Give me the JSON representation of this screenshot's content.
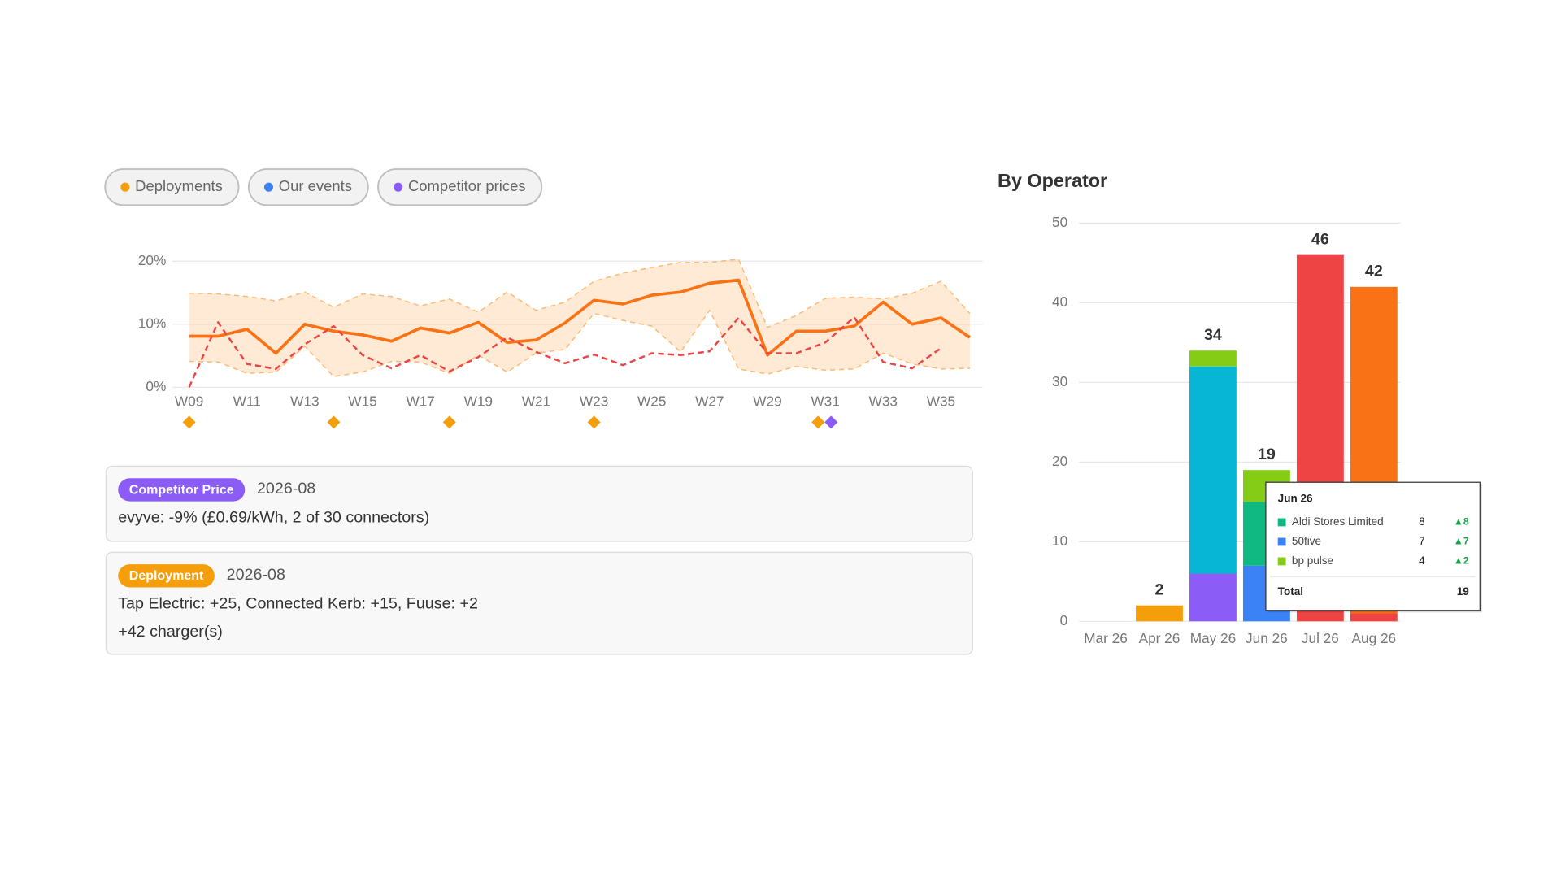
{
  "filters": [
    {
      "label": "Deployments",
      "color": "#f59e0b"
    },
    {
      "label": "Our events",
      "color": "#3b82f6"
    },
    {
      "label": "Competitor prices",
      "color": "#8b5cf6"
    }
  ],
  "chart_data": [
    {
      "type": "line",
      "categories": [
        "W09",
        null,
        "W11",
        null,
        "W13",
        null,
        "W15",
        null,
        "W17",
        null,
        "W19",
        null,
        "W21",
        null,
        "W23",
        null,
        "W25",
        null,
        "W27",
        null,
        "W29",
        null,
        "W31",
        null,
        "W33",
        null,
        "W35",
        null
      ],
      "ylim": [
        0,
        22
      ],
      "yticks": [
        {
          "value": 0,
          "label": "0%"
        },
        {
          "value": 10,
          "label": "10%"
        },
        {
          "value": 20,
          "label": "20%"
        }
      ],
      "grid": true,
      "band": {
        "color": "#fdba74",
        "upper": [
          14.9,
          14.8,
          14.4,
          13.7,
          15.1,
          12.7,
          14.8,
          14.4,
          12.9,
          14,
          11.9,
          15.1,
          12.2,
          13.5,
          16.8,
          18.1,
          19,
          19.8,
          19.8,
          20.3,
          9.5,
          11.4,
          14.1,
          14.3,
          14,
          14.9,
          16.8,
          11.7
        ],
        "lower": [
          4.1,
          4,
          2.2,
          2.4,
          6.5,
          1.7,
          2.4,
          4.1,
          4,
          2.2,
          5.1,
          2.4,
          5.4,
          6,
          11.7,
          10.6,
          9.7,
          5.6,
          12.2,
          2.9,
          2.1,
          3.3,
          2.7,
          2.9,
          5.4,
          3.7,
          2.9,
          3
        ]
      },
      "series": [
        {
          "color": "#f97316",
          "dashed": false,
          "values": [
            8.1,
            8.1,
            9.2,
            5.4,
            10,
            8.9,
            8.3,
            7.3,
            9.4,
            8.6,
            10.3,
            7.1,
            7.5,
            10.2,
            13.8,
            13.2,
            14.6,
            15.1,
            16.5,
            17,
            5.1,
            8.9,
            8.9,
            9.7,
            13.5,
            10,
            11,
            7.9
          ]
        },
        {
          "color": "#ef4444",
          "dashed": true,
          "values": [
            0,
            10.3,
            3.7,
            2.9,
            6.8,
            9.7,
            5.1,
            3,
            5.1,
            2.5,
            4.8,
            7.9,
            5.6,
            3.8,
            5.2,
            3.5,
            5.4,
            5.1,
            5.7,
            11,
            5.4,
            5.4,
            7.1,
            11.1,
            4,
            3,
            6.2,
            null
          ]
        }
      ],
      "markers": {
        "x": [
          0,
          5,
          9,
          14,
          21.75,
          22.2
        ],
        "colors": [
          "#f59e0b",
          "#f59e0b",
          "#f59e0b",
          "#f59e0b",
          "#f59e0b",
          "#8b5cf6"
        ]
      }
    },
    {
      "type": "bar",
      "stacked": true,
      "title": "By Operator",
      "categories": [
        "Mar 26",
        "Apr 26",
        "May 26",
        "Jun 26",
        "Jul 26",
        "Aug 26"
      ],
      "ylim": [
        0,
        50
      ],
      "yticks": [
        0,
        10,
        20,
        30,
        40,
        50
      ],
      "grid": true,
      "series": [
        {
          "color": "#f59e0b",
          "values": [
            null,
            2,
            null,
            null,
            null,
            null
          ]
        },
        {
          "color": "#8b5cf6",
          "values": [
            null,
            null,
            6,
            null,
            null,
            null
          ]
        },
        {
          "color": "#3b82f6",
          "values": [
            null,
            null,
            null,
            7,
            null,
            null
          ]
        },
        {
          "color": "#06b6d4",
          "values": [
            null,
            null,
            26,
            null,
            null,
            null
          ]
        },
        {
          "color": "#10b981",
          "values": [
            null,
            null,
            null,
            8,
            null,
            null
          ]
        },
        {
          "color": "#84cc16",
          "values": [
            null,
            null,
            2,
            4,
            null,
            null
          ]
        },
        {
          "color": "#ef4444",
          "values": [
            null,
            null,
            null,
            null,
            46,
            1
          ]
        },
        {
          "color": "#f97316",
          "values": [
            null,
            null,
            null,
            null,
            null,
            41
          ]
        }
      ],
      "totals": [
        null,
        2,
        34,
        19,
        46,
        42
      ],
      "tooltip": {
        "title": "Jun 26",
        "rows": [
          {
            "name": "Aldi Stores Limited",
            "color": "#10b981",
            "value": 8,
            "change": "▲8"
          },
          {
            "name": "50five",
            "color": "#3b82f6",
            "value": 7,
            "change": "▲7"
          },
          {
            "name": "bp pulse",
            "color": "#84cc16",
            "value": 4,
            "change": "▲2"
          }
        ],
        "total_label": "Total",
        "total": 19
      }
    }
  ],
  "events": [
    {
      "badge": "Competitor Price",
      "color": "#8b5cf6",
      "date": "2026-08",
      "lines": [
        "evyve: -9% (£0.69/kWh, 2 of 30 connectors)"
      ]
    },
    {
      "badge": "Deployment",
      "color": "#f59e0b",
      "date": "2026-08",
      "lines": [
        "Tap Electric: +25, Connected Kerb: +15, Fuuse: +2",
        "+42 charger(s)"
      ]
    }
  ]
}
